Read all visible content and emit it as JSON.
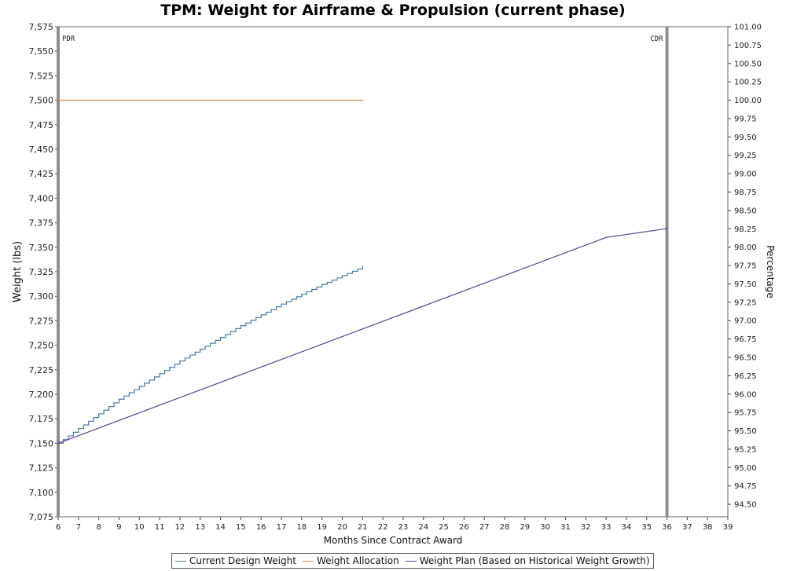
{
  "chart_data": {
    "type": "line",
    "title": "TPM: Weight for Airframe & Propulsion (current phase)",
    "xlabel": "Months Since Contract Award",
    "ylabel": "Weight (lbs)",
    "y2label": "Percentage",
    "xlim": [
      6,
      39
    ],
    "ylim": [
      7075,
      7575
    ],
    "y2lim": [
      94.33,
      101.0
    ],
    "x_ticks": [
      "6",
      "7",
      "8",
      "9",
      "10",
      "11",
      "12",
      "13",
      "14",
      "15",
      "16",
      "17",
      "18",
      "19",
      "20",
      "21",
      "22",
      "23",
      "24",
      "25",
      "26",
      "27",
      "28",
      "29",
      "30",
      "31",
      "32",
      "33",
      "34",
      "35",
      "36",
      "37",
      "38",
      "39"
    ],
    "y_ticks": [
      "7,075",
      "7,100",
      "7,125",
      "7,150",
      "7,175",
      "7,200",
      "7,225",
      "7,250",
      "7,275",
      "7,300",
      "7,325",
      "7,350",
      "7,375",
      "7,400",
      "7,425",
      "7,450",
      "7,475",
      "7,500",
      "7,525",
      "7,550",
      "7,575"
    ],
    "y2_ticks": [
      "94.50",
      "94.75",
      "95.00",
      "95.25",
      "95.50",
      "95.75",
      "96.00",
      "96.25",
      "96.50",
      "96.75",
      "97.00",
      "97.25",
      "97.50",
      "97.75",
      "98.00",
      "98.25",
      "98.50",
      "98.75",
      "99.00",
      "99.25",
      "99.50",
      "99.75",
      "100.00",
      "100.25",
      "100.50",
      "100.75",
      "101.00"
    ],
    "markers": [
      {
        "label": "PDR",
        "x": 6
      },
      {
        "label": "CDR",
        "x": 36
      }
    ],
    "series": [
      {
        "name": "Current Design Weight",
        "color": "#4a7aa8",
        "stepped": true,
        "x": [
          6,
          7,
          8,
          9,
          10,
          11,
          12,
          13,
          14,
          15,
          16,
          17,
          18,
          19,
          20,
          21
        ],
        "y": [
          7150,
          7165,
          7180,
          7195,
          7208,
          7221,
          7234,
          7246,
          7258,
          7270,
          7281,
          7292,
          7302,
          7312,
          7321,
          7330
        ]
      },
      {
        "name": "Weight Allocation",
        "color": "#d4894a",
        "stepped": false,
        "x": [
          6,
          21
        ],
        "y": [
          7500,
          7500
        ]
      },
      {
        "name": "Weight Plan (Based on Historical Weight Growth)",
        "color": "#5a3d8c",
        "stepped": false,
        "x": [
          6,
          33,
          36
        ],
        "y": [
          7150,
          7360,
          7369
        ]
      }
    ],
    "grid": false,
    "legend_position": "bottom"
  }
}
